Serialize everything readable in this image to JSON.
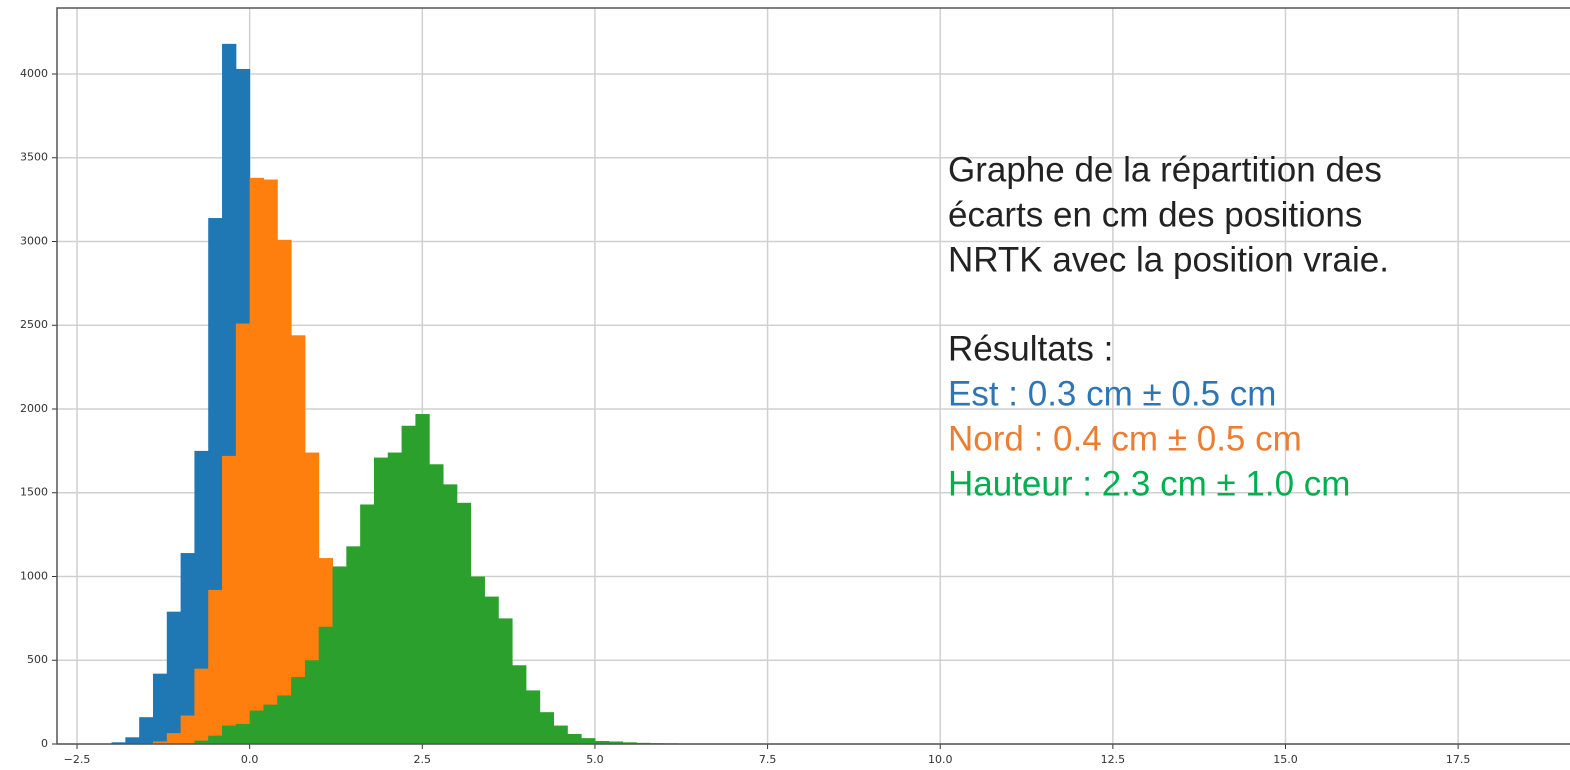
{
  "chart_data": {
    "type": "histogram",
    "series": [
      {
        "color": "#1f77b4",
        "bins": [
          -2.0,
          -1.8,
          -1.6,
          -1.4,
          -1.2,
          -1.0,
          -0.8,
          -0.6,
          -0.4,
          -0.2,
          0.0
        ],
        "values": [
          10,
          40,
          160,
          420,
          790,
          1140,
          1750,
          3140,
          4180,
          4030
        ]
      },
      {
        "color": "#ff7f0e",
        "bins": [
          -1.4,
          -1.2,
          -1.0,
          -0.8,
          -0.6,
          -0.4,
          -0.2,
          0.0,
          0.2,
          0.4,
          0.6,
          0.8,
          1.0,
          1.2
        ],
        "values": [
          15,
          65,
          170,
          450,
          920,
          1720,
          2510,
          3380,
          3370,
          3010,
          2440,
          1740,
          1110
        ]
      },
      {
        "color": "#2ca02c",
        "bins": [
          -1.0,
          -0.8,
          -0.6,
          -0.4,
          -0.2,
          0.0,
          0.2,
          0.4,
          0.6,
          0.8,
          1.0,
          1.2,
          1.4,
          1.6,
          1.8,
          2.0,
          2.2,
          2.4,
          2.6,
          2.8,
          3.0,
          3.2,
          3.4,
          3.6,
          3.8,
          4.0,
          4.2,
          4.4,
          4.6,
          4.8,
          5.0,
          5.2,
          5.4,
          5.6,
          5.8,
          6.0,
          6.2,
          6.4,
          6.6,
          6.8,
          7.0,
          7.2
        ],
        "values": [
          5,
          20,
          50,
          110,
          120,
          200,
          235,
          290,
          400,
          500,
          700,
          1060,
          1180,
          1430,
          1710,
          1740,
          1900,
          1970,
          1670,
          1550,
          1440,
          1000,
          880,
          750,
          470,
          320,
          190,
          110,
          60,
          35,
          18,
          15,
          10,
          7,
          5,
          4,
          3,
          2,
          0,
          0,
          3
        ]
      }
    ],
    "xlim": [
      -2.79,
      19.12
    ],
    "xticks": [
      {
        "value": -2.5,
        "label": "−2.5"
      },
      {
        "value": 0,
        "label": "0.0"
      },
      2.5,
      {
        "value": 5,
        "label": "5.0"
      },
      7.5,
      {
        "value": 10,
        "label": "10.0"
      },
      12.5,
      {
        "value": 15,
        "label": "15.0"
      },
      17.5
    ],
    "ylim": [
      0,
      4394
    ],
    "yticks": [
      0,
      500,
      1000,
      1500,
      2000,
      2500,
      3000,
      3500,
      4000
    ],
    "grid": true,
    "annotations": [
      {
        "text": "Graphe de la répartition des",
        "color": "#222222"
      },
      {
        "text": "écarts en cm des positions",
        "color": "#222222"
      },
      {
        "text": "NRTK avec la position vraie.",
        "color": "#222222"
      },
      {
        "text": "Résultats :",
        "color": "#222222"
      },
      {
        "text": "Est : 0.3 cm ± 0.5 cm",
        "color": "#2e75b6"
      },
      {
        "text": "Nord : 0.4 cm ± 0.5 cm",
        "color": "#ed7d31"
      },
      {
        "text": "Hauteur : 2.3 cm ± 1.0 cm",
        "color": "#00b050"
      }
    ]
  }
}
